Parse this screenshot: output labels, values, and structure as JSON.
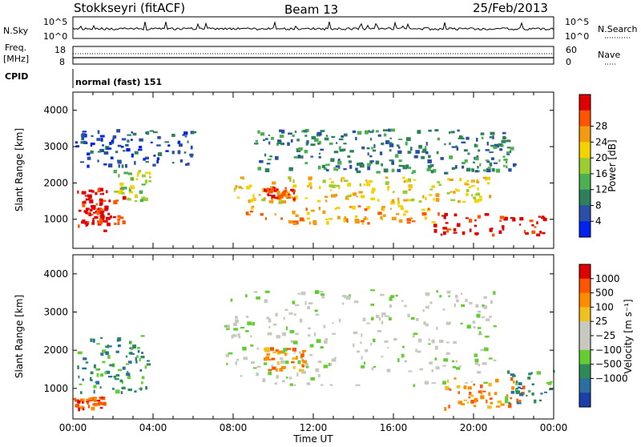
{
  "header": {
    "station": "Stokkseyri (fitACF)",
    "beam": "Beam 13",
    "date": "25/Feb/2013"
  },
  "top_panels": {
    "nsky": {
      "label": "N.Sky",
      "left_ticks": [
        "10^5",
        "10^0"
      ],
      "right_ticks": [
        "10^5",
        "10^0"
      ],
      "right_label": "N.Search"
    },
    "freq": {
      "label_line1": "Freq.",
      "label_line2": "[MHz]",
      "left_ticks": [
        "18",
        "8"
      ],
      "right_ticks": [
        "60",
        "0"
      ],
      "right_label": "Nave"
    },
    "cpid": {
      "label": "CPID",
      "value": "normal (fast) 151"
    }
  },
  "colors": {
    "power_scale": [
      "#0022ee",
      "#2a4fa6",
      "#2e7f5c",
      "#4caf50",
      "#9acd32",
      "#f3d200",
      "#f39c12",
      "#ff5500",
      "#e00000"
    ],
    "velocity_scale": [
      "#1a3fa8",
      "#2a6fa0",
      "#2e8b57",
      "#66cc33",
      "#c8c8c0",
      "#c8c8c0",
      "#f0c020",
      "#ff8c00",
      "#ff5500",
      "#e00000"
    ]
  },
  "chart_data": [
    {
      "type": "heatmap",
      "name": "Power",
      "xlabel": "",
      "ylabel": "Slant Range [km]",
      "x_range_hours": [
        0,
        24
      ],
      "ylim": [
        200,
        4500
      ],
      "yticks": [
        1000,
        2000,
        3000,
        4000
      ],
      "colorbar": {
        "label": "Power [dB]",
        "ticks": [
          "4",
          "8",
          "12",
          "16",
          "20",
          "24",
          "28"
        ],
        "colors": [
          "#0022ee",
          "#2a4fa6",
          "#2e7f5c",
          "#4caf50",
          "#9acd32",
          "#f3d200",
          "#f39c12",
          "#ff5500",
          "#e00000"
        ]
      },
      "regions": [
        {
          "t0": 0.0,
          "t1": 2.5,
          "r0": 700,
          "r1": 1900,
          "level": 8
        },
        {
          "t0": 0.4,
          "t1": 1.6,
          "r0": 900,
          "r1": 1500,
          "level": 8
        },
        {
          "t0": 2.0,
          "t1": 3.8,
          "r0": 1500,
          "r1": 2400,
          "level": 4
        },
        {
          "t0": 8.0,
          "t1": 21.0,
          "r0": 1500,
          "r1": 2200,
          "level": 5
        },
        {
          "t0": 9.5,
          "t1": 11.0,
          "r0": 1600,
          "r1": 1900,
          "level": 7
        },
        {
          "t0": 8.5,
          "t1": 18.0,
          "r0": 900,
          "r1": 1400,
          "level": 6
        },
        {
          "t0": 18.0,
          "t1": 23.5,
          "r0": 600,
          "r1": 1200,
          "level": 8
        },
        {
          "t0": 9.0,
          "t1": 22.0,
          "r0": 2300,
          "r1": 3500,
          "level": 2
        },
        {
          "t0": 0.1,
          "t1": 6.0,
          "r0": 2500,
          "r1": 3500,
          "level": 1
        }
      ]
    },
    {
      "type": "heatmap",
      "name": "Velocity",
      "xlabel": "Time UT",
      "ylabel": "Slant Range [km]",
      "x_range_hours": [
        0,
        24
      ],
      "ylim": [
        200,
        4500
      ],
      "yticks": [
        1000,
        2000,
        3000,
        4000
      ],
      "xticks": [
        "00:00",
        "04:00",
        "08:00",
        "12:00",
        "16:00",
        "20:00",
        "00:00"
      ],
      "colorbar": {
        "label": "Velocity [m s⁻¹]",
        "ticks": [
          "1000",
          "500",
          "100",
          "25",
          "−25",
          "−100",
          "−500",
          "−1000"
        ],
        "colors": [
          "#1a3fa8",
          "#2a6fa0",
          "#2e8b57",
          "#66cc33",
          "#c8c8c0",
          "#c8c8c0",
          "#f0c020",
          "#ff8c00",
          "#ff5500",
          "#e00000"
        ]
      },
      "regions": [
        {
          "t0": 0.2,
          "t1": 3.8,
          "r0": 900,
          "r1": 2400,
          "level": 2
        },
        {
          "t0": 0.0,
          "t1": 1.5,
          "r0": 500,
          "r1": 800,
          "level": 8
        },
        {
          "t0": 7.5,
          "t1": 21.0,
          "r0": 1100,
          "r1": 3600,
          "level": 4
        },
        {
          "t0": 9.5,
          "t1": 11.5,
          "r0": 1500,
          "r1": 2100,
          "level": 7
        },
        {
          "t0": 18.5,
          "t1": 22.5,
          "r0": 500,
          "r1": 1300,
          "level": 7
        },
        {
          "t0": 21.5,
          "t1": 24.0,
          "r0": 600,
          "r1": 1500,
          "level": 2
        }
      ]
    }
  ]
}
